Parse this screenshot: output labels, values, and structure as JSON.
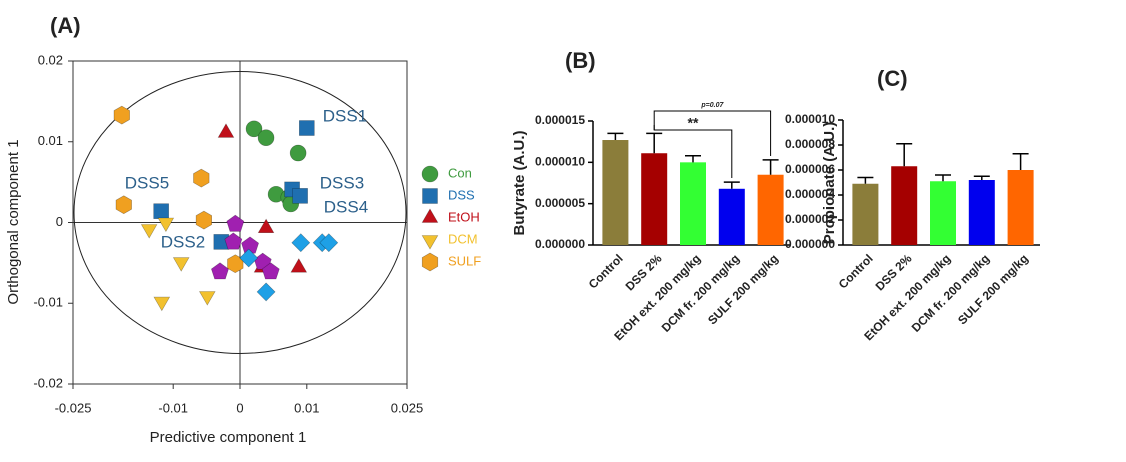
{
  "chart_data": [
    {
      "type": "scatter",
      "title": "(A)",
      "xlabel": "Predictive component 1",
      "ylabel": "Orthogonal component 1",
      "xlim": [
        -0.025,
        0.025
      ],
      "xticks": [
        -0.025,
        -0.01,
        0,
        0.01,
        0.025
      ],
      "ylim": [
        -0.02,
        0.02
      ],
      "yticks": [
        -0.02,
        -0.01,
        0,
        0.01,
        0.02
      ],
      "annotations": [
        "DSS1",
        "DSS2",
        "DSS3",
        "DSS4",
        "DSS5"
      ],
      "series": [
        {
          "name": "Con",
          "color": "#3f9b3f",
          "marker": "circle",
          "x": [
            0.0021,
            0.0039,
            0.0087,
            0.0054,
            0.0073,
            0.0076
          ],
          "y": [
            0.0116,
            0.0105,
            0.0086,
            0.0035,
            0.0031,
            0.0023
          ]
        },
        {
          "name": "DSS",
          "color": "#1f6fb0",
          "marker": "square",
          "x": [
            0.01,
            0.0078,
            0.009,
            -0.0118,
            -0.0028
          ],
          "y": [
            0.0117,
            0.0041,
            0.0033,
            0.0014,
            -0.0024
          ]
        },
        {
          "name": "EtOH",
          "color": "#c0101a",
          "marker": "triangle",
          "x": [
            -0.0021,
            0.0039,
            0.0033,
            0.0088
          ],
          "y": [
            0.0111,
            -0.0007,
            -0.0056,
            -0.0056
          ]
        },
        {
          "name": "DCM",
          "color": "#f2c12e",
          "marker": "triangle-down",
          "x": [
            -0.0136,
            -0.0111,
            -0.0088,
            -0.0117,
            -0.0049
          ],
          "y": [
            -0.0008,
            0.0,
            -0.0049,
            -0.0098,
            -0.0091
          ]
        },
        {
          "name": "SULF",
          "color": "#f0a020",
          "marker": "hexagon",
          "x": [
            -0.0177,
            -0.0058,
            -0.0174,
            -0.0054,
            -0.0007
          ],
          "y": [
            0.0133,
            0.0055,
            0.0022,
            0.0003,
            -0.0051
          ]
        },
        {
          "color": "#a020b0",
          "marker": "pentagon",
          "x": [
            -0.0007,
            -0.001,
            0.0015,
            0.0034,
            0.0046,
            -0.003
          ],
          "y": [
            -0.0002,
            -0.0024,
            -0.0029,
            -0.0049,
            -0.0061,
            -0.0061
          ]
        },
        {
          "color": "#1ea0e6",
          "marker": "diamond",
          "x": [
            0.0091,
            0.0123,
            0.0133,
            0.0039,
            0.0013
          ],
          "y": [
            -0.0025,
            -0.0025,
            -0.0025,
            -0.0086,
            -0.0044
          ]
        }
      ]
    },
    {
      "type": "bar",
      "title": "(B)",
      "ylabel": "Butyrate (A.U.)",
      "categories": [
        "Control",
        "DSS 2%",
        "EtOH ext. 200 mg/kg",
        "DCM fr. 200 mg/kg",
        "SULF 200 mg/kg"
      ],
      "values": [
        1.27e-05,
        1.11e-05,
        1e-05,
        6.8e-06,
        8.5e-06
      ],
      "errors": [
        8e-07,
        2.4e-06,
        8e-07,
        8e-07,
        1.8e-06
      ],
      "colors": [
        "#8b7d3a",
        "#a50000",
        "#33ff33",
        "#0000ee",
        "#ff6600"
      ],
      "ylim": [
        0,
        1.5e-05
      ],
      "yticks": [
        {
          "value": 0,
          "label": "0.000000"
        },
        {
          "value": 5e-06,
          "label": "0.000005"
        },
        {
          "value": 1e-05,
          "label": "0.000010"
        },
        {
          "value": 1.5e-05,
          "label": "0.000015"
        }
      ],
      "annotations": [
        "**",
        "p=0.07"
      ]
    },
    {
      "type": "bar",
      "title": "(C)",
      "ylabel": "Propionate (A.U.)",
      "categories": [
        "Control",
        "DSS 2%",
        "EtOH ext. 200 mg/kg",
        "DCM fr. 200 mg/kg",
        "SULF 200 mg/kg"
      ],
      "values": [
        4.9e-06,
        6.3e-06,
        5.1e-06,
        5.2e-06,
        6e-06
      ],
      "errors": [
        5e-07,
        1.8e-06,
        5e-07,
        3e-07,
        1.3e-06
      ],
      "colors": [
        "#8b7d3a",
        "#a50000",
        "#33ff33",
        "#0000ee",
        "#ff6600"
      ],
      "ylim": [
        0,
        1e-05
      ],
      "yticks": [
        {
          "value": 0,
          "label": "0.000000"
        },
        {
          "value": 2e-06,
          "label": "0.000002"
        },
        {
          "value": 4e-06,
          "label": "0.000004"
        },
        {
          "value": 6e-06,
          "label": "0.000006"
        },
        {
          "value": 8e-06,
          "label": "0.000008"
        },
        {
          "value": 1e-05,
          "label": "0.000010"
        }
      ]
    }
  ]
}
